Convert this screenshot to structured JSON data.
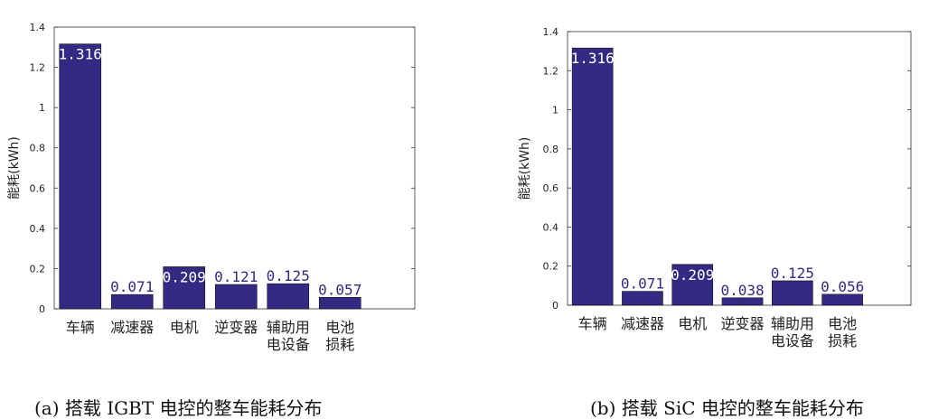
{
  "chart_data": [
    {
      "type": "bar",
      "categories": [
        [
          "车辆"
        ],
        [
          "减速器"
        ],
        [
          "电机"
        ],
        [
          "逆变器"
        ],
        [
          "辅助用",
          "电设备"
        ],
        [
          "电池",
          "损耗"
        ]
      ],
      "values": [
        1.316,
        0.071,
        0.209,
        0.121,
        0.125,
        0.057
      ],
      "data_labels": [
        "1.316",
        "0.071",
        "0.209",
        "0.121",
        "0.125",
        "0.057"
      ],
      "ylabel": "能耗(kWh)",
      "ylim": [
        0,
        1.4
      ],
      "yticks": [
        "0",
        "0.2",
        "0.4",
        "0.6",
        "0.8",
        "1",
        "1.2",
        "1.4"
      ],
      "caption": "(a)  搭载 IGBT 电控的整车能耗分布",
      "grid": false,
      "bar_color": "#332a83"
    },
    {
      "type": "bar",
      "categories": [
        [
          "车辆"
        ],
        [
          "减速器"
        ],
        [
          "电机"
        ],
        [
          "逆变器"
        ],
        [
          "辅助用",
          "电设备"
        ],
        [
          "电池",
          "损耗"
        ]
      ],
      "values": [
        1.316,
        0.071,
        0.209,
        0.038,
        0.125,
        0.056
      ],
      "data_labels": [
        "1.316",
        "0.071",
        "0.209",
        "0.038",
        "0.125",
        "0.056"
      ],
      "ylabel": "能耗(kWh)",
      "ylim": [
        0,
        1.4
      ],
      "yticks": [
        "0",
        "0.2",
        "0.4",
        "0.6",
        "0.8",
        "1",
        "1.2",
        "1.4"
      ],
      "caption": "(b)  搭载 SiC 电控的整车能耗分布",
      "grid": false,
      "bar_color": "#332a83"
    }
  ]
}
